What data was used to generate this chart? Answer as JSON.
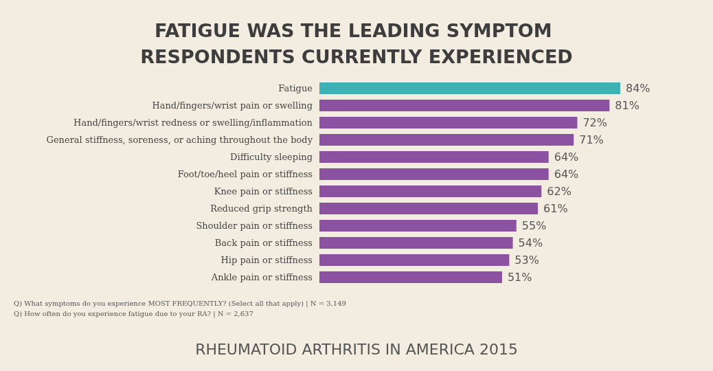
{
  "chart_data": {
    "type": "bar",
    "orientation": "horizontal",
    "tick_labels": false,
    "title": "FATIGUE WAS THE LEADING SYMPTOM RESPONDENTS CURRENTLY EXPERIENCED",
    "categories": [
      "Fatigue",
      "Hand/fingers/wrist pain or swelling",
      "Hand/fingers/wrist redness or swelling/inflammation",
      "General stiffness, soreness, or aching throughout the body",
      "Difficulty sleeping",
      "Foot/toe/heel pain or stiffness",
      "Knee pain or stiffness",
      "Reduced grip strength",
      "Shoulder pain or stiffness",
      "Back pain or stiffness",
      "Hip pain or stiffness",
      "Ankle pain or stiffness"
    ],
    "values": [
      84,
      81,
      72,
      71,
      64,
      64,
      62,
      61,
      55,
      54,
      53,
      51
    ],
    "value_labels": [
      "84%",
      "81%",
      "72%",
      "71%",
      "64%",
      "64%",
      "62%",
      "61%",
      "55%",
      "54%",
      "53%",
      "51%"
    ],
    "colors": [
      "#3eb1b5",
      "#8c52a2",
      "#8c52a2",
      "#8c52a2",
      "#8c52a2",
      "#8c52a2",
      "#8c52a2",
      "#8c52a2",
      "#8c52a2",
      "#8c52a2",
      "#8c52a2",
      "#8c52a2"
    ],
    "annotations": [
      "Q) What symptoms do you experience MOST FREQUENTLY? (Select all that apply) | N = 3,149",
      "Q) How often do you experience fatigue due to your RA? | N = 2,637",
      "RHEUMATOID ARTHRITIS IN AMERICA 2015"
    ]
  }
}
